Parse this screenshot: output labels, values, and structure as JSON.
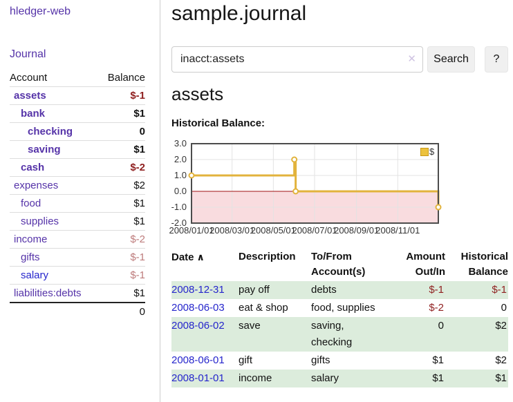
{
  "app": {
    "brand": "hledger-web",
    "nav_journal": "Journal"
  },
  "colors": {
    "link_purple": "#5533a8",
    "link_blue": "#2525cc",
    "neg_strong": "#8f1f1f",
    "neg_muted": "#bd7b7b",
    "stripe_green": "#dcecdc",
    "chart_line": "#e2b33c",
    "chart_neg_fill": "#f9dcdf",
    "chart_zero_line": "#a01010"
  },
  "sidebar": {
    "accounts_header": {
      "account": "Account",
      "balance": "Balance"
    },
    "accounts": [
      {
        "name": "assets",
        "balance": "$-1",
        "depth": 1,
        "emph": true,
        "name_style": "purple",
        "bal_style": "neg"
      },
      {
        "name": "bank",
        "balance": "$1",
        "depth": 2,
        "emph": true,
        "name_style": "purple",
        "bal_style": "pos"
      },
      {
        "name": "checking",
        "balance": "0",
        "depth": 3,
        "emph": true,
        "name_style": "purple",
        "bal_style": "pos"
      },
      {
        "name": "saving",
        "balance": "$1",
        "depth": 3,
        "emph": true,
        "name_style": "purple",
        "bal_style": "pos"
      },
      {
        "name": "cash",
        "balance": "$-2",
        "depth": 2,
        "emph": true,
        "name_style": "purple",
        "bal_style": "neg"
      },
      {
        "name": "expenses",
        "balance": "$2",
        "depth": 1,
        "emph": false,
        "name_style": "purple",
        "bal_style": "pos"
      },
      {
        "name": "food",
        "balance": "$1",
        "depth": 2,
        "emph": false,
        "name_style": "purple",
        "bal_style": "pos"
      },
      {
        "name": "supplies",
        "balance": "$1",
        "depth": 2,
        "emph": false,
        "name_style": "purple",
        "bal_style": "pos"
      },
      {
        "name": "income",
        "balance": "$-2",
        "depth": 1,
        "emph": false,
        "name_style": "purple",
        "bal_style": "negmuted"
      },
      {
        "name": "gifts",
        "balance": "$-1",
        "depth": 2,
        "emph": false,
        "name_style": "purple",
        "bal_style": "negmuted"
      },
      {
        "name": "salary",
        "balance": "$-1",
        "depth": 2,
        "emph": false,
        "name_style": "blue",
        "bal_style": "negmuted"
      },
      {
        "name": "liabilities:debts",
        "balance": "$1",
        "depth": 1,
        "emph": false,
        "name_style": "purple",
        "bal_style": "pos"
      }
    ],
    "total": "0"
  },
  "main": {
    "title": "sample.journal",
    "search": {
      "value": "inacct:assets",
      "clear_icon": "✕",
      "button": "Search",
      "help_button": "?"
    },
    "account_heading": "assets",
    "chart_label": "Historical Balance:"
  },
  "chart_data": {
    "type": "line",
    "step": true,
    "title": "Historical Balance",
    "series": [
      {
        "name": "$",
        "color": "#e2b33c",
        "points": [
          [
            "2008-01-01",
            1
          ],
          [
            "2008-06-01",
            2
          ],
          [
            "2008-06-03",
            0
          ],
          [
            "2008-12-31",
            -1
          ]
        ]
      }
    ],
    "ylim": [
      -2,
      3
    ],
    "yticks": [
      "3.0",
      "2.0",
      "1.0",
      "0.0",
      "-1.0",
      "-2.0"
    ],
    "xticks": [
      "2008/01/01",
      "2008/03/01",
      "2008/05/01",
      "2008/07/01",
      "2008/09/01",
      "2008/11/01"
    ],
    "xrange": [
      "2008-01-01",
      "2008-12-31"
    ],
    "grid": true,
    "negative_region": true,
    "legend": {
      "label": "$",
      "position": "top-right"
    }
  },
  "register": {
    "headers": [
      {
        "label": "Date",
        "sort_icon": "∧",
        "align": "left"
      },
      {
        "label": "Description",
        "align": "left"
      },
      {
        "label": "To/From Account(s)",
        "align": "left"
      },
      {
        "label": "Amount Out/In",
        "align": "right"
      },
      {
        "label": "Historical Balance",
        "align": "right"
      }
    ],
    "rows": [
      {
        "date": "2008-12-31",
        "description": "pay off",
        "accounts": "debts",
        "amount": "$-1",
        "amount_neg": true,
        "balance": "$-1",
        "balance_neg": true,
        "stripe": true
      },
      {
        "date": "2008-06-03",
        "description": "eat & shop",
        "accounts": "food, supplies",
        "amount": "$-2",
        "amount_neg": true,
        "balance": "0",
        "balance_neg": false,
        "stripe": false
      },
      {
        "date": "2008-06-02",
        "description": "save",
        "accounts": "saving, checking",
        "amount": "0",
        "amount_neg": false,
        "balance": "$2",
        "balance_neg": false,
        "stripe": true
      },
      {
        "date": "2008-06-01",
        "description": "gift",
        "accounts": "gifts",
        "amount": "$1",
        "amount_neg": false,
        "balance": "$2",
        "balance_neg": false,
        "stripe": false
      },
      {
        "date": "2008-01-01",
        "description": "income",
        "accounts": "salary",
        "amount": "$1",
        "amount_neg": false,
        "balance": "$1",
        "balance_neg": false,
        "stripe": true
      }
    ]
  }
}
